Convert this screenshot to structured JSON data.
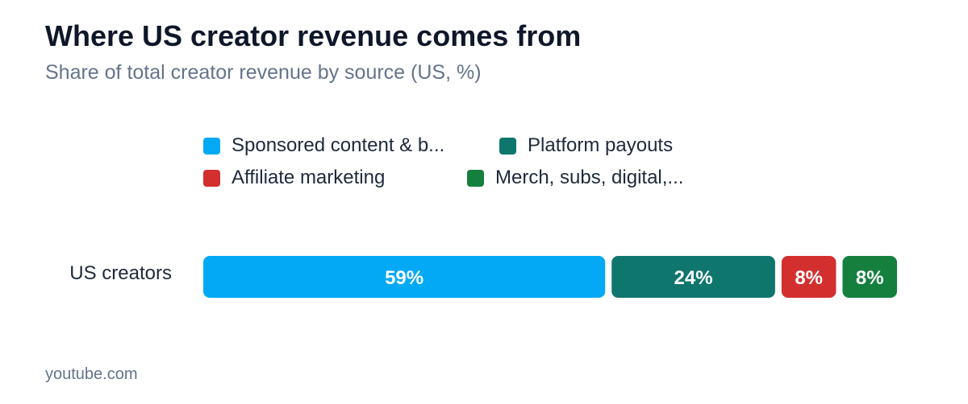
{
  "title": "Where US creator revenue comes from",
  "subtitle": "Share of total creator revenue by source (US, %)",
  "source": "youtube.com",
  "chart_data": {
    "type": "bar",
    "orientation": "horizontal",
    "stacked": true,
    "categories": [
      "US creators"
    ],
    "value_suffix": "%",
    "legend_position": "top",
    "grid": false,
    "series": [
      {
        "name": "Sponsored content & b...",
        "values": [
          59
        ],
        "color": "#03a9f4"
      },
      {
        "name": "Platform payouts",
        "values": [
          24
        ],
        "color": "#0f766e"
      },
      {
        "name": "Affiliate marketing",
        "values": [
          8
        ],
        "color": "#d32f2f"
      },
      {
        "name": "Merch, subs, digital,...",
        "values": [
          8
        ],
        "color": "#15803d"
      }
    ]
  }
}
